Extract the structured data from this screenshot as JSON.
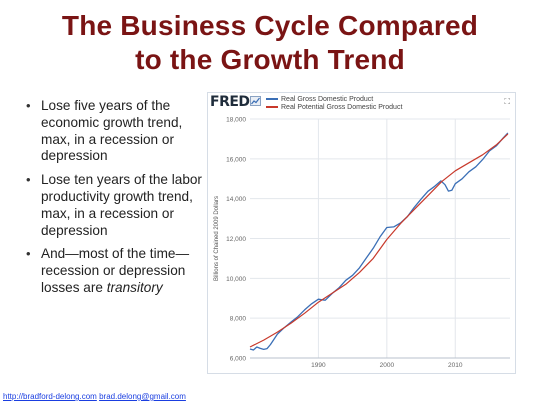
{
  "slide": {
    "title_line1": "The Business Cycle Compared",
    "title_line2": "to the Growth Trend"
  },
  "bullets": [
    {
      "text": "Lose five years of the economic growth trend, max, in a recession or depression"
    },
    {
      "text": "Lose ten years of the labor productivity growth trend, max, in a recession or depression"
    },
    {
      "text": "And—most of the time—recession or depression losses are",
      "italic": "transitory"
    }
  ],
  "fred": {
    "logo": "FRED",
    "expand_icon": "expand-icon",
    "legend": [
      {
        "label": "Real Gross Domestic Product",
        "color": "#3b6fb6"
      },
      {
        "label": "Real Potential Gross Domestic Product",
        "color": "#c8392b"
      }
    ]
  },
  "chart_data": {
    "type": "line",
    "ylabel": "Billions of Chained 2009 Dollars",
    "xlabel": "",
    "ylim": [
      6000,
      18000
    ],
    "yticks": [
      6000,
      8000,
      10000,
      12000,
      14000,
      16000,
      18000
    ],
    "ytick_labels": [
      "6,000",
      "8,000",
      "10,000",
      "12,000",
      "14,000",
      "16,000",
      "18,000"
    ],
    "xlim": [
      1980,
      2018
    ],
    "xticks": [
      1990,
      2000,
      2010
    ],
    "xtick_labels": [
      "1990",
      "2000",
      "2010"
    ],
    "grid": true,
    "series": [
      {
        "name": "Real Gross Domestic Product",
        "color": "#3b6fb6",
        "x": [
          1980,
          1980.5,
          1981,
          1981.5,
          1982,
          1982.5,
          1983,
          1984,
          1985,
          1986,
          1987,
          1988,
          1989,
          1990,
          1990.5,
          1991,
          1992,
          1993,
          1994,
          1995,
          1996,
          1997,
          1998,
          1999,
          2000,
          2001,
          2002,
          2003,
          2004,
          2005,
          2006,
          2007,
          2007.9,
          2008.5,
          2009,
          2009.5,
          2010,
          2011,
          2012,
          2013,
          2014,
          2015,
          2016,
          2017,
          2017.7
        ],
        "y": [
          6450,
          6400,
          6550,
          6480,
          6430,
          6470,
          6680,
          7200,
          7520,
          7810,
          8080,
          8420,
          8720,
          8950,
          8920,
          8900,
          9240,
          9520,
          9900,
          10150,
          10530,
          11020,
          11510,
          12080,
          12550,
          12580,
          12780,
          13100,
          13560,
          13980,
          14370,
          14620,
          14890,
          14700,
          14380,
          14420,
          14750,
          15000,
          15350,
          15600,
          15960,
          16400,
          16650,
          17050,
          17300
        ]
      },
      {
        "name": "Real Potential Gross Domestic Product",
        "color": "#c8392b",
        "x": [
          1980,
          1982,
          1984,
          1986,
          1988,
          1990,
          1992,
          1994,
          1996,
          1998,
          2000,
          2002,
          2004,
          2006,
          2008,
          2010,
          2012,
          2014,
          2016,
          2017.7
        ],
        "y": [
          6550,
          6900,
          7300,
          7750,
          8250,
          8800,
          9250,
          9700,
          10300,
          11000,
          11950,
          12750,
          13450,
          14150,
          14850,
          15400,
          15800,
          16200,
          16700,
          17250
        ]
      }
    ]
  },
  "footer": {
    "link1": "http://bradford-delong.com",
    "link2": "brad.delong@gmail.com"
  }
}
